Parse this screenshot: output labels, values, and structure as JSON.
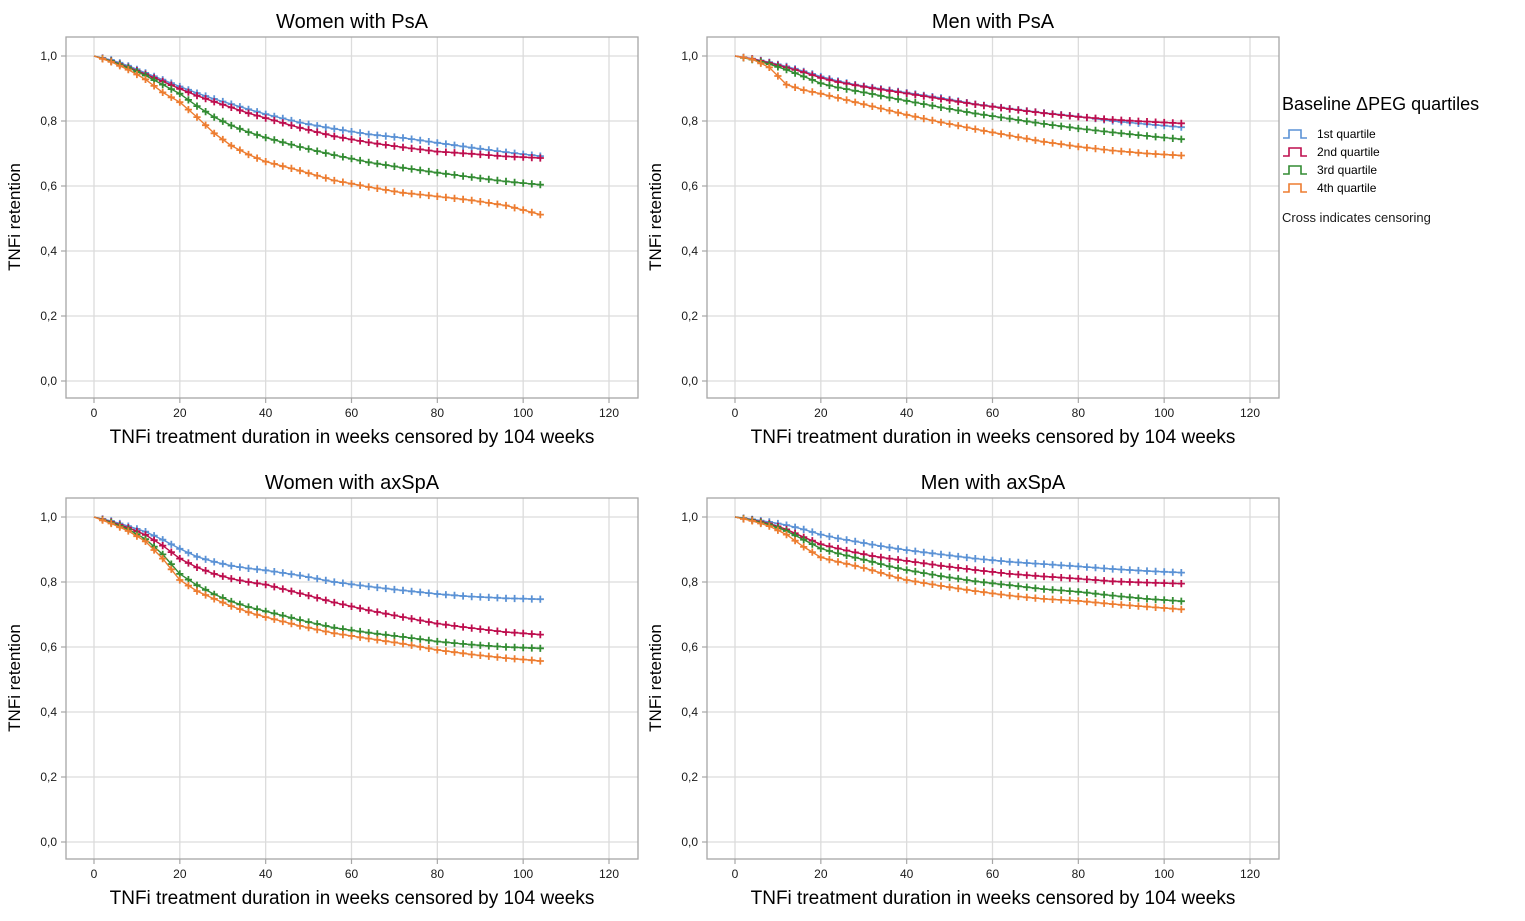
{
  "chart_data": {
    "type": "line",
    "subtype": "kaplan-meier-survival",
    "grid": true,
    "censoring_marker": "cross",
    "legend": {
      "position": "right",
      "title": "Baseline ΔPEG quartiles",
      "items": [
        {
          "label": "1st quartile",
          "color": "#5B92D5"
        },
        {
          "label": "2nd quartile",
          "color": "#BE0E4E"
        },
        {
          "label": "3rd quartile",
          "color": "#338C33"
        },
        {
          "label": "4th quartile",
          "color": "#ED7D31"
        }
      ],
      "note": "Cross indicates censoring"
    },
    "axes": {
      "xlabel": "TNFi treatment duration in weeks censored by 104 weeks",
      "ylabel": "TNFi retention",
      "x_ticks": [
        0,
        20,
        40,
        60,
        80,
        100,
        120
      ],
      "y_tick_labels": [
        "1,0",
        "0,8",
        "0,6",
        "0,4",
        "0,2",
        "0,0"
      ],
      "y_tick_values": [
        1.0,
        0.8,
        0.6,
        0.4,
        0.2,
        0.0
      ],
      "xlim": [
        -7,
        127
      ],
      "ylim": [
        -0.05,
        1.06
      ],
      "censor_week_max": 104
    },
    "x_weeks_grid": [
      0,
      4,
      8,
      12,
      16,
      20,
      24,
      28,
      32,
      36,
      40,
      48,
      56,
      64,
      72,
      80,
      88,
      96,
      104
    ],
    "panels": [
      {
        "title": "Women with PsA",
        "series": [
          {
            "name": "1st quartile",
            "y": [
              1.0,
              0.988,
              0.97,
              0.948,
              0.927,
              0.906,
              0.886,
              0.868,
              0.852,
              0.836,
              0.821,
              0.795,
              0.776,
              0.759,
              0.748,
              0.733,
              0.718,
              0.704,
              0.692
            ]
          },
          {
            "name": "2nd quartile",
            "y": [
              1.0,
              0.985,
              0.966,
              0.944,
              0.922,
              0.899,
              0.878,
              0.859,
              0.842,
              0.824,
              0.809,
              0.779,
              0.753,
              0.734,
              0.719,
              0.706,
              0.699,
              0.691,
              0.686
            ]
          },
          {
            "name": "3rd quartile",
            "y": [
              1.0,
              0.984,
              0.964,
              0.94,
              0.912,
              0.884,
              0.846,
              0.812,
              0.786,
              0.766,
              0.749,
              0.72,
              0.695,
              0.673,
              0.656,
              0.641,
              0.627,
              0.614,
              0.604
            ]
          },
          {
            "name": "4th quartile",
            "y": [
              1.0,
              0.982,
              0.958,
              0.928,
              0.888,
              0.858,
              0.812,
              0.762,
              0.724,
              0.697,
              0.675,
              0.647,
              0.617,
              0.597,
              0.579,
              0.568,
              0.556,
              0.54,
              0.512
            ]
          }
        ]
      },
      {
        "title": "Men with PsA",
        "series": [
          {
            "name": "1st quartile",
            "y": [
              1.0,
              0.992,
              0.981,
              0.968,
              0.953,
              0.937,
              0.923,
              0.912,
              0.903,
              0.895,
              0.887,
              0.871,
              0.852,
              0.838,
              0.825,
              0.814,
              0.8,
              0.79,
              0.781
            ]
          },
          {
            "name": "2nd quartile",
            "y": [
              1.0,
              0.991,
              0.979,
              0.965,
              0.95,
              0.933,
              0.92,
              0.91,
              0.901,
              0.893,
              0.885,
              0.868,
              0.851,
              0.837,
              0.824,
              0.813,
              0.804,
              0.798,
              0.793
            ]
          },
          {
            "name": "3rd quartile",
            "y": [
              1.0,
              0.989,
              0.975,
              0.958,
              0.937,
              0.916,
              0.903,
              0.893,
              0.883,
              0.872,
              0.862,
              0.842,
              0.823,
              0.807,
              0.791,
              0.777,
              0.765,
              0.754,
              0.744
            ]
          },
          {
            "name": "4th quartile",
            "y": [
              1.0,
              0.99,
              0.965,
              0.912,
              0.895,
              0.884,
              0.871,
              0.858,
              0.845,
              0.832,
              0.819,
              0.796,
              0.775,
              0.755,
              0.736,
              0.721,
              0.709,
              0.7,
              0.694
            ]
          }
        ]
      },
      {
        "title": "Women with axSpA",
        "series": [
          {
            "name": "1st quartile",
            "y": [
              1.0,
              0.988,
              0.972,
              0.955,
              0.93,
              0.902,
              0.878,
              0.862,
              0.85,
              0.842,
              0.836,
              0.82,
              0.8,
              0.786,
              0.774,
              0.763,
              0.755,
              0.75,
              0.747
            ]
          },
          {
            "name": "2nd quartile",
            "y": [
              1.0,
              0.985,
              0.967,
              0.945,
              0.912,
              0.872,
              0.845,
              0.825,
              0.81,
              0.8,
              0.792,
              0.765,
              0.737,
              0.713,
              0.692,
              0.672,
              0.658,
              0.646,
              0.638
            ]
          },
          {
            "name": "3rd quartile",
            "y": [
              1.0,
              0.983,
              0.962,
              0.932,
              0.885,
              0.825,
              0.79,
              0.762,
              0.74,
              0.723,
              0.71,
              0.683,
              0.659,
              0.644,
              0.631,
              0.617,
              0.607,
              0.6,
              0.596
            ]
          },
          {
            "name": "4th quartile",
            "y": [
              1.0,
              0.98,
              0.957,
              0.925,
              0.872,
              0.806,
              0.772,
              0.748,
              0.726,
              0.707,
              0.692,
              0.665,
              0.642,
              0.626,
              0.61,
              0.591,
              0.577,
              0.566,
              0.557
            ]
          }
        ]
      },
      {
        "title": "Men with axSpA",
        "series": [
          {
            "name": "1st quartile",
            "y": [
              1.0,
              0.993,
              0.985,
              0.975,
              0.962,
              0.946,
              0.934,
              0.925,
              0.915,
              0.906,
              0.898,
              0.885,
              0.872,
              0.862,
              0.855,
              0.848,
              0.84,
              0.834,
              0.829
            ]
          },
          {
            "name": "2nd quartile",
            "y": [
              1.0,
              0.991,
              0.98,
              0.962,
              0.938,
              0.916,
              0.903,
              0.891,
              0.88,
              0.872,
              0.865,
              0.85,
              0.837,
              0.825,
              0.817,
              0.81,
              0.802,
              0.798,
              0.795
            ]
          },
          {
            "name": "3rd quartile",
            "y": [
              1.0,
              0.99,
              0.977,
              0.957,
              0.93,
              0.903,
              0.888,
              0.875,
              0.862,
              0.848,
              0.837,
              0.818,
              0.802,
              0.79,
              0.778,
              0.77,
              0.758,
              0.748,
              0.741
            ]
          },
          {
            "name": "4th quartile",
            "y": [
              1.0,
              0.988,
              0.972,
              0.946,
              0.908,
              0.876,
              0.862,
              0.85,
              0.836,
              0.82,
              0.806,
              0.788,
              0.772,
              0.758,
              0.748,
              0.742,
              0.732,
              0.724,
              0.716
            ]
          }
        ]
      }
    ],
    "style_colors": {
      "gridline": "#dcdcdc",
      "plot_border": "#a6a6a6",
      "tick": "#a6a6a6",
      "text": "#000000"
    }
  }
}
